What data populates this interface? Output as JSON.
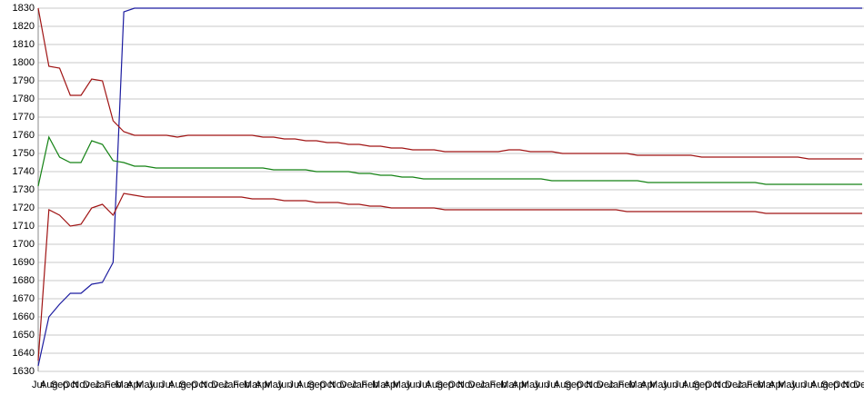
{
  "chart_data": {
    "type": "line",
    "categories": [
      "Jul",
      "Aug",
      "Sep",
      "Oct",
      "Nov",
      "Dec",
      "Jan",
      "Feb",
      "Mar",
      "Apr",
      "May",
      "Jun",
      "Jul",
      "Aug",
      "Sep",
      "Oct",
      "Nov",
      "Dec",
      "Jan",
      "Feb",
      "Mar",
      "Apr",
      "May",
      "Jun",
      "Jul",
      "Aug",
      "Sep",
      "Oct",
      "Nov",
      "Dec",
      "Jan",
      "Feb",
      "Mar",
      "Apr",
      "May",
      "Jun",
      "Jul",
      "Aug",
      "Sep",
      "Oct",
      "Nov",
      "Dec",
      "Jan",
      "Feb",
      "Mar",
      "Apr",
      "May",
      "Jun",
      "Jul",
      "Aug",
      "Sep",
      "Oct",
      "Nov",
      "Dec",
      "Jan",
      "Feb",
      "Mar",
      "Apr",
      "May",
      "Jun",
      "Jul",
      "Aug",
      "Sep",
      "Oct",
      "Nov",
      "Dec",
      "Jan",
      "Feb",
      "Mar",
      "Apr",
      "May",
      "Jun",
      "Jul",
      "Aug",
      "Sep",
      "Oct",
      "Nov",
      "Dec"
    ],
    "series": [
      {
        "color": "#1c1ca0",
        "values": [
          1633,
          1660,
          1667,
          1673,
          1673,
          1678,
          1679,
          1690,
          1828,
          1830,
          1830,
          1830,
          1830,
          1830,
          1830,
          1830,
          1830,
          1830,
          1830,
          1830,
          1830,
          1830,
          1830,
          1830,
          1830,
          1830,
          1830,
          1830,
          1830,
          1830,
          1830,
          1830,
          1830,
          1830,
          1830,
          1830,
          1830,
          1830,
          1830,
          1830,
          1830,
          1830,
          1830,
          1830,
          1830,
          1830,
          1830,
          1830,
          1830,
          1830,
          1830,
          1830,
          1830,
          1830,
          1830,
          1830,
          1830,
          1830,
          1830,
          1830,
          1830,
          1830,
          1830,
          1830,
          1830,
          1830,
          1830,
          1830,
          1830,
          1830,
          1830,
          1830,
          1830,
          1830,
          1830,
          1830,
          1830,
          1830
        ]
      },
      {
        "color": "#a01414",
        "values": [
          1830,
          1798,
          1797,
          1782,
          1782,
          1791,
          1790,
          1768,
          1762,
          1760,
          1760,
          1760,
          1760,
          1759,
          1760,
          1760,
          1760,
          1760,
          1760,
          1760,
          1760,
          1759,
          1759,
          1758,
          1758,
          1757,
          1757,
          1756,
          1756,
          1755,
          1755,
          1754,
          1754,
          1753,
          1753,
          1752,
          1752,
          1752,
          1751,
          1751,
          1751,
          1751,
          1751,
          1751,
          1752,
          1752,
          1751,
          1751,
          1751,
          1750,
          1750,
          1750,
          1750,
          1750,
          1750,
          1750,
          1749,
          1749,
          1749,
          1749,
          1749,
          1749,
          1748,
          1748,
          1748,
          1748,
          1748,
          1748,
          1748,
          1748,
          1748,
          1748,
          1747,
          1747,
          1747,
          1747,
          1747,
          1747
        ]
      },
      {
        "color": "#148214",
        "values": [
          1732,
          1759,
          1748,
          1745,
          1745,
          1757,
          1755,
          1746,
          1745,
          1743,
          1743,
          1742,
          1742,
          1742,
          1742,
          1742,
          1742,
          1742,
          1742,
          1742,
          1742,
          1742,
          1741,
          1741,
          1741,
          1741,
          1740,
          1740,
          1740,
          1740,
          1739,
          1739,
          1738,
          1738,
          1737,
          1737,
          1736,
          1736,
          1736,
          1736,
          1736,
          1736,
          1736,
          1736,
          1736,
          1736,
          1736,
          1736,
          1735,
          1735,
          1735,
          1735,
          1735,
          1735,
          1735,
          1735,
          1735,
          1734,
          1734,
          1734,
          1734,
          1734,
          1734,
          1734,
          1734,
          1734,
          1734,
          1734,
          1733,
          1733,
          1733,
          1733,
          1733,
          1733,
          1733,
          1733,
          1733,
          1733
        ]
      },
      {
        "color": "#a01414",
        "values": [
          1636,
          1719,
          1716,
          1710,
          1711,
          1720,
          1722,
          1716,
          1728,
          1727,
          1726,
          1726,
          1726,
          1726,
          1726,
          1726,
          1726,
          1726,
          1726,
          1726,
          1725,
          1725,
          1725,
          1724,
          1724,
          1724,
          1723,
          1723,
          1723,
          1722,
          1722,
          1721,
          1721,
          1720,
          1720,
          1720,
          1720,
          1720,
          1719,
          1719,
          1719,
          1719,
          1719,
          1719,
          1719,
          1719,
          1719,
          1719,
          1719,
          1719,
          1719,
          1719,
          1719,
          1719,
          1719,
          1718,
          1718,
          1718,
          1718,
          1718,
          1718,
          1718,
          1718,
          1718,
          1718,
          1718,
          1718,
          1718,
          1717,
          1717,
          1717,
          1717,
          1717,
          1717,
          1717,
          1717,
          1717,
          1717
        ]
      }
    ],
    "ylim": [
      1630,
      1830
    ],
    "yticks": [
      1630,
      1640,
      1650,
      1660,
      1670,
      1680,
      1690,
      1700,
      1710,
      1720,
      1730,
      1740,
      1750,
      1760,
      1770,
      1780,
      1790,
      1800,
      1810,
      1820,
      1830
    ],
    "grid": true
  }
}
